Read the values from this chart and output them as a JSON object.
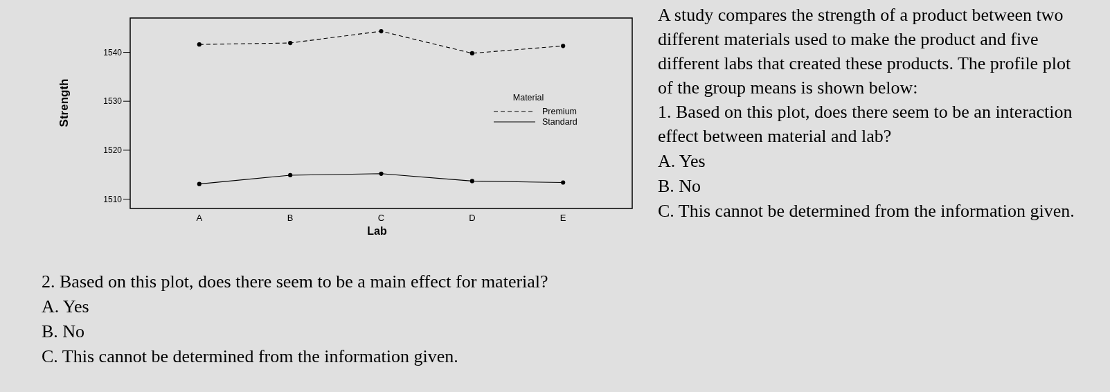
{
  "chart_data": {
    "type": "line",
    "xlabel": "Lab",
    "ylabel": "Strength",
    "legend_title": "Material",
    "categories": [
      "A",
      "B",
      "C",
      "D",
      "E"
    ],
    "series": [
      {
        "name": "Premium",
        "color": "#000000",
        "line_style": "dashed",
        "values": [
          1541.6,
          1541.9,
          1544.3,
          1539.8,
          1541.3
        ]
      },
      {
        "name": "Standard",
        "color": "#000000",
        "line_style": "solid",
        "values": [
          1513.1,
          1514.9,
          1515.2,
          1513.7,
          1513.4
        ]
      }
    ],
    "ylim": [
      1508.1,
      1547
    ],
    "yticks": [
      1510,
      1520,
      1530,
      1540
    ],
    "marker": "circle",
    "legend": "right",
    "grid": false,
    "annotations": [
      "A study compares the strength of a product between two different materials used to make the product and five different labs that created these products. The profile plot of the group means is shown below:",
      "1.  Based on this plot, does there seem to be an interaction effect between material and lab?",
      "A. Yes",
      "B. No",
      "C. This cannot be determined from the information given.",
      "2.  Based on this plot, does there seem to be a main effect for material?",
      "A. Yes",
      "B. No",
      "C. This cannot be determined from the information given."
    ]
  }
}
